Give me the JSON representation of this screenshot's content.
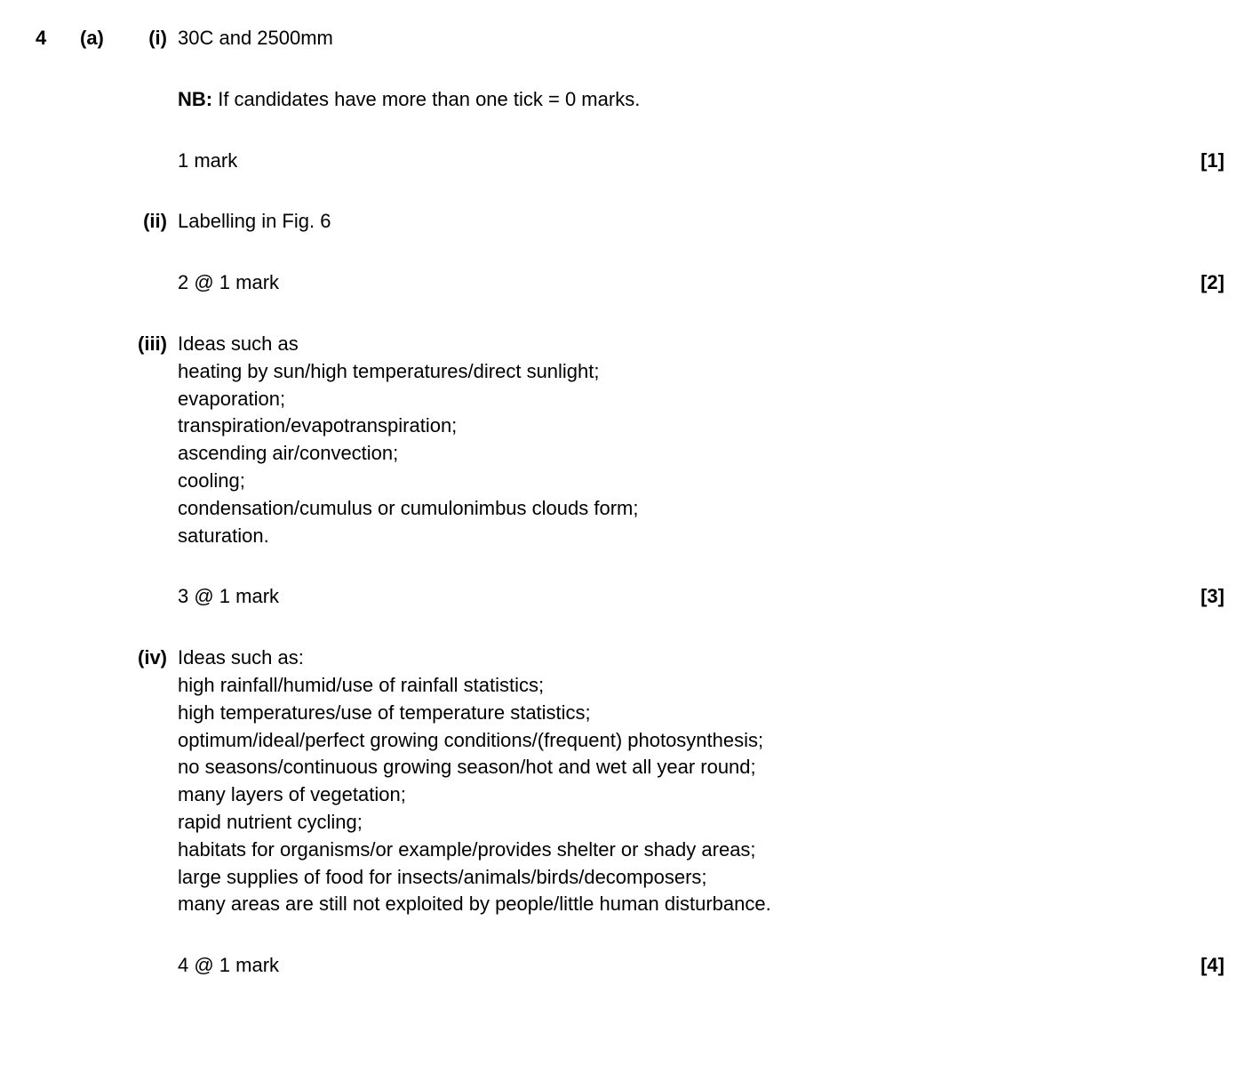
{
  "question": {
    "number": "4",
    "part": "(a)",
    "subparts": [
      {
        "roman": "(i)",
        "answer": "30C and 2500mm",
        "nb_label": "NB:",
        "nb_text": " If candidates have more than one tick = 0 marks.",
        "mark_text": "1 mark",
        "mark_badge": "[1]"
      },
      {
        "roman": "(ii)",
        "answer": "Labelling in Fig. 6",
        "mark_text": "2 @ 1 mark",
        "mark_badge": "[2]"
      },
      {
        "roman": "(iii)",
        "intro": "Ideas such as",
        "ideas": [
          "heating by sun/high temperatures/direct sunlight;",
          "evaporation;",
          "transpiration/evapotranspiration;",
          "ascending air/convection;",
          "cooling;",
          "condensation/cumulus or cumulonimbus clouds form;",
          "saturation."
        ],
        "mark_text": "3 @ 1 mark",
        "mark_badge": "[3]"
      },
      {
        "roman": "(iv)",
        "intro": "Ideas such as:",
        "ideas": [
          "high rainfall/humid/use of rainfall statistics;",
          "high temperatures/use of temperature statistics;",
          "optimum/ideal/perfect growing conditions/(frequent) photosynthesis;",
          "no seasons/continuous growing season/hot and wet all year round;",
          "many layers of vegetation;",
          "rapid nutrient cycling;",
          "habitats for organisms/or example/provides shelter or shady areas;",
          "large supplies of food for insects/animals/birds/decomposers;",
          "many areas are still not exploited by people/little human disturbance."
        ],
        "mark_text": "4 @ 1 mark",
        "mark_badge": "[4]"
      }
    ]
  }
}
